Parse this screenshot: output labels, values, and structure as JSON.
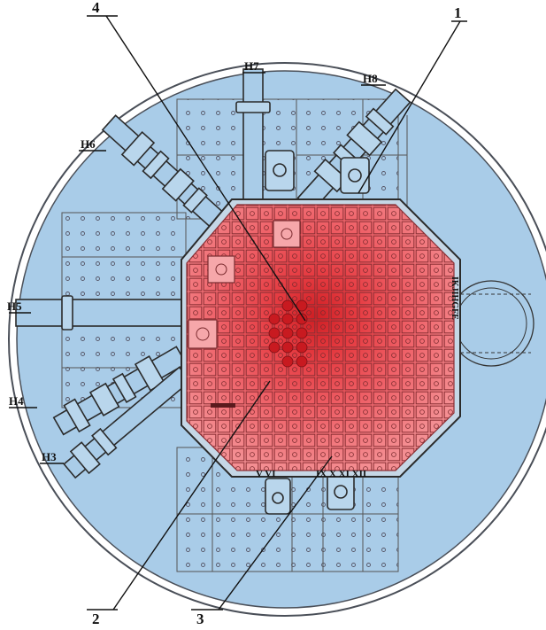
{
  "callouts": [
    {
      "id": "1",
      "text": "1"
    },
    {
      "id": "2",
      "text": "2"
    },
    {
      "id": "3",
      "text": "3"
    },
    {
      "id": "4",
      "text": "4"
    }
  ],
  "channels": [
    {
      "id": "h3",
      "text": "H3"
    },
    {
      "id": "h4",
      "text": "H4"
    },
    {
      "id": "h5",
      "text": "H5"
    },
    {
      "id": "h6",
      "text": "H6"
    },
    {
      "id": "h7",
      "text": "H7"
    },
    {
      "id": "h8",
      "text": "H8"
    }
  ],
  "row_letters": [
    "I",
    "K",
    "J",
    "I",
    "H",
    "G",
    "F",
    "E"
  ],
  "row_letters_text": "IKJIHGFE",
  "bottom_roman": {
    "left": "V VI",
    "right": "IX X XI XII"
  },
  "colors": {
    "vessel": "#a9cce8",
    "core": "#ee5a62",
    "core_center": "#d92a2e",
    "lines": "#333333"
  }
}
